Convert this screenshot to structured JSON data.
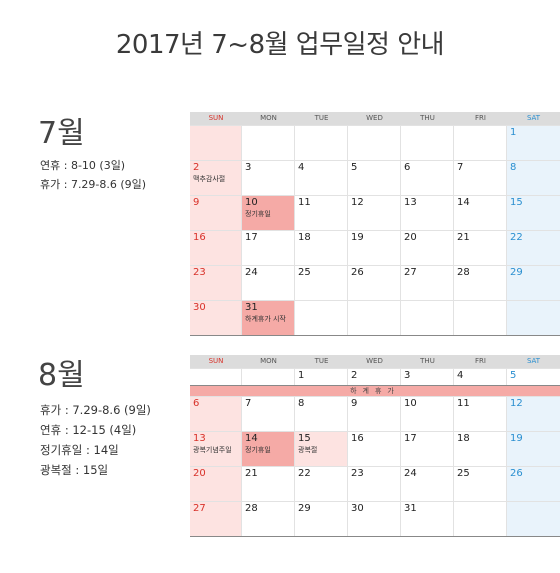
{
  "title": "2017년 7~8월 업무일정 안내",
  "weekdays": [
    "SUN",
    "MON",
    "TUE",
    "WED",
    "THU",
    "FRI",
    "SAT"
  ],
  "july": {
    "heading": "7월",
    "info": [
      "연휴 : 8-10 (3일)",
      "휴가 : 7.29-8.6 (9일)"
    ],
    "notes": {
      "d2": "맥추감사절",
      "d10": "정기휴일",
      "d31": "하계휴가 시작"
    }
  },
  "august": {
    "heading": "8월",
    "info": [
      "휴가 : 7.29-8.6 (9일)",
      "연휴 : 12-15 (4일)",
      "정기휴일 : 14일",
      "광복절 : 15일"
    ],
    "vacation_bar": "하계휴가",
    "notes": {
      "d13": "광복기념주일",
      "d14": "정기휴일",
      "d15": "광복절"
    }
  }
}
